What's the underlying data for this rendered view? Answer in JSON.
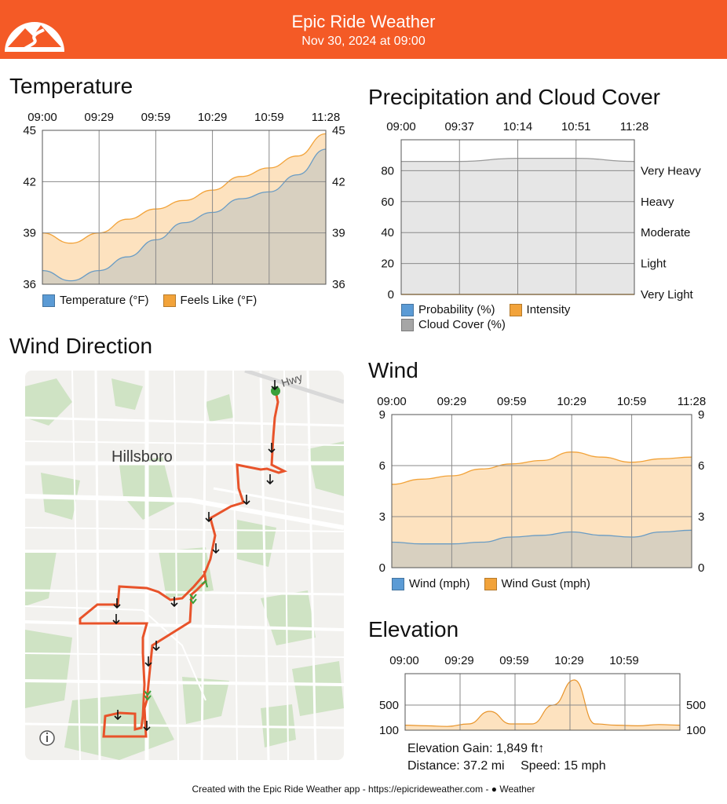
{
  "header": {
    "title": "Epic Ride Weather",
    "subtitle": "Nov 30, 2024 at 09:00",
    "bg_color": "#f45a26",
    "logo_icon": "mountain-road-logo-icon"
  },
  "temperature": {
    "title": "Temperature",
    "time_labels": [
      "09:00",
      "09:29",
      "09:59",
      "10:29",
      "10:59",
      "11:28"
    ],
    "y_ticks": [
      "45",
      "42",
      "39",
      "36"
    ],
    "legend": [
      {
        "label": "Temperature (°F)",
        "color": "#5b9bd5"
      },
      {
        "label": "Feels Like (°F)",
        "color": "#f2a33a"
      }
    ]
  },
  "precipitation": {
    "title": "Precipitation and Cloud Cover",
    "time_labels": [
      "09:00",
      "09:37",
      "10:14",
      "10:51",
      "11:28"
    ],
    "y_ticks_left": [
      "80",
      "60",
      "40",
      "20",
      "0"
    ],
    "y_ticks_right": [
      "Very Heavy",
      "Heavy",
      "Moderate",
      "Light",
      "Very Light"
    ],
    "legend": [
      {
        "label": "Probability (%)",
        "color": "#5b9bd5"
      },
      {
        "label": "Intensity",
        "color": "#f2a33a"
      },
      {
        "label": "Cloud Cover (%)",
        "color": "#a6a6a6"
      }
    ]
  },
  "wind_direction": {
    "title": "Wind Direction",
    "map_city": "Hillsboro",
    "map_road": "Hwy",
    "info_icon": "info-icon"
  },
  "wind": {
    "title": "Wind",
    "time_labels": [
      "09:00",
      "09:29",
      "09:59",
      "10:29",
      "10:59",
      "11:28"
    ],
    "y_ticks": [
      "9",
      "6",
      "3",
      "0"
    ],
    "legend": [
      {
        "label": "Wind (mph)",
        "color": "#5b9bd5"
      },
      {
        "label": "Wind Gust (mph)",
        "color": "#f2a33a"
      }
    ]
  },
  "elevation": {
    "title": "Elevation",
    "time_labels": [
      "09:00",
      "09:29",
      "09:59",
      "10:29",
      "10:59"
    ],
    "y_ticks": [
      "500",
      "100"
    ],
    "gain_text": "Elevation Gain: 1,849 ft↑",
    "distance_text": "Distance: 37.2 mi",
    "speed_text": "Speed: 15 mph"
  },
  "footer": {
    "text": "Created with the Epic Ride Weather app - https://epicrideweather.com - ",
    "weather_text": "Weather",
    "apple_icon": "apple-logo-icon"
  },
  "chart_data": [
    {
      "type": "area",
      "title": "Temperature",
      "x": [
        "09:00",
        "09:15",
        "09:29",
        "09:45",
        "09:59",
        "10:15",
        "10:29",
        "10:45",
        "10:59",
        "11:15",
        "11:28"
      ],
      "series": [
        {
          "name": "Temperature (°F)",
          "values": [
            36.8,
            36.2,
            36.8,
            37.6,
            38.6,
            39.6,
            40.2,
            41.0,
            41.4,
            42.4,
            43.9
          ]
        },
        {
          "name": "Feels Like (°F)",
          "values": [
            39.0,
            38.4,
            39.0,
            39.8,
            40.4,
            40.9,
            41.5,
            42.3,
            42.8,
            43.5,
            44.8
          ]
        }
      ],
      "ylim": [
        36,
        45
      ]
    },
    {
      "type": "area",
      "title": "Precipitation and Cloud Cover",
      "x": [
        "09:00",
        "09:37",
        "10:14",
        "10:51",
        "11:28"
      ],
      "series": [
        {
          "name": "Probability (%)",
          "values": [
            0,
            0,
            0,
            0,
            0
          ]
        },
        {
          "name": "Intensity",
          "values": [
            0,
            0,
            0,
            0,
            0
          ]
        },
        {
          "name": "Cloud Cover (%)",
          "values": [
            86,
            86,
            88,
            88,
            86
          ]
        }
      ],
      "ylim": [
        0,
        100
      ]
    },
    {
      "type": "area",
      "title": "Wind",
      "x": [
        "09:00",
        "09:15",
        "09:29",
        "09:45",
        "09:59",
        "10:15",
        "10:29",
        "10:45",
        "10:59",
        "11:15",
        "11:28"
      ],
      "series": [
        {
          "name": "Wind (mph)",
          "values": [
            1.5,
            1.4,
            1.4,
            1.5,
            1.8,
            1.9,
            2.1,
            1.9,
            1.8,
            2.1,
            2.2
          ]
        },
        {
          "name": "Wind Gust (mph)",
          "values": [
            4.9,
            5.2,
            5.4,
            5.8,
            6.1,
            6.3,
            6.8,
            6.5,
            6.2,
            6.4,
            6.5
          ]
        }
      ],
      "ylim": [
        0,
        9
      ]
    },
    {
      "type": "area",
      "title": "Elevation",
      "x": [
        "09:00",
        "09:14",
        "09:29",
        "09:44",
        "09:52",
        "09:59",
        "10:14",
        "10:22",
        "10:29",
        "10:36",
        "10:44",
        "10:59",
        "11:14",
        "11:28"
      ],
      "series": [
        {
          "name": "Elevation",
          "values": [
            180,
            170,
            160,
            200,
            400,
            200,
            200,
            500,
            900,
            200,
            180,
            170,
            190,
            180
          ]
        }
      ],
      "ylim": [
        100,
        1000
      ]
    }
  ]
}
